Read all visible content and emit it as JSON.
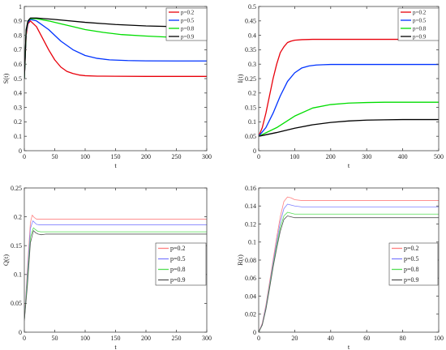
{
  "chart_data": [
    {
      "type": "line",
      "xlabel": "t",
      "ylabel": "S(t)",
      "xlim": [
        0,
        300
      ],
      "ylim": [
        0,
        1
      ],
      "xticks": [
        0,
        50,
        100,
        150,
        200,
        250,
        300
      ],
      "yticks": [
        0,
        0.1,
        0.2,
        0.3,
        0.4,
        0.5,
        0.6,
        0.7,
        0.8,
        0.9,
        1
      ],
      "ytick_labels": [
        "0",
        "0.1",
        "0.2",
        "0.3",
        "0.4",
        "0.5",
        "0.6",
        "0.7",
        "0.8",
        "0.9",
        "1"
      ],
      "grid": false,
      "legend_position": "top-right",
      "series": [
        {
          "name": "p=0.2",
          "color": "#e8000b",
          "x": [
            0,
            3,
            6,
            10,
            20,
            30,
            40,
            50,
            60,
            70,
            80,
            90,
            100,
            120,
            150,
            200,
            250,
            300
          ],
          "y": [
            0.5,
            0.8,
            0.88,
            0.9,
            0.86,
            0.78,
            0.7,
            0.63,
            0.58,
            0.55,
            0.535,
            0.525,
            0.52,
            0.517,
            0.516,
            0.515,
            0.515,
            0.515
          ]
        },
        {
          "name": "p=0.5",
          "color": "#0033ff",
          "x": [
            0,
            3,
            6,
            10,
            20,
            40,
            60,
            80,
            100,
            120,
            140,
            170,
            200,
            250,
            300
          ],
          "y": [
            0.5,
            0.82,
            0.89,
            0.91,
            0.9,
            0.84,
            0.76,
            0.7,
            0.66,
            0.64,
            0.63,
            0.625,
            0.623,
            0.622,
            0.622
          ]
        },
        {
          "name": "p=0.8",
          "color": "#00dd00",
          "x": [
            0,
            3,
            6,
            10,
            20,
            40,
            60,
            80,
            100,
            130,
            160,
            200,
            250,
            300
          ],
          "y": [
            0.5,
            0.83,
            0.9,
            0.915,
            0.915,
            0.9,
            0.88,
            0.86,
            0.84,
            0.82,
            0.805,
            0.795,
            0.785,
            0.78
          ]
        },
        {
          "name": "p=0.9",
          "color": "#000000",
          "x": [
            0,
            3,
            6,
            10,
            20,
            50,
            100,
            150,
            200,
            250,
            300
          ],
          "y": [
            0.5,
            0.84,
            0.9,
            0.92,
            0.92,
            0.91,
            0.89,
            0.875,
            0.865,
            0.86,
            0.855
          ]
        }
      ]
    },
    {
      "type": "line",
      "xlabel": "t",
      "ylabel": "I(t)",
      "xlim": [
        0,
        500
      ],
      "ylim": [
        0,
        0.5
      ],
      "xticks": [
        0,
        100,
        200,
        300,
        400,
        500
      ],
      "yticks": [
        0,
        0.05,
        0.1,
        0.15,
        0.2,
        0.25,
        0.3,
        0.35,
        0.4,
        0.45,
        0.5
      ],
      "ytick_labels": [
        "0",
        "0.05",
        "0.1",
        "0.15",
        "0.2",
        "0.25",
        "0.3",
        "0.35",
        "0.4",
        "0.45",
        "0.5"
      ],
      "grid": false,
      "legend_position": "top-right",
      "series": [
        {
          "name": "p=0.2",
          "color": "#e8000b",
          "x": [
            0,
            10,
            20,
            30,
            40,
            50,
            60,
            70,
            80,
            90,
            100,
            120,
            150,
            200,
            300,
            500
          ],
          "y": [
            0.05,
            0.08,
            0.13,
            0.19,
            0.25,
            0.3,
            0.34,
            0.36,
            0.375,
            0.38,
            0.383,
            0.385,
            0.386,
            0.386,
            0.386,
            0.386
          ]
        },
        {
          "name": "p=0.5",
          "color": "#0033ff",
          "x": [
            0,
            20,
            40,
            60,
            80,
            100,
            120,
            140,
            160,
            180,
            200,
            250,
            300,
            500
          ],
          "y": [
            0.05,
            0.08,
            0.13,
            0.19,
            0.24,
            0.27,
            0.287,
            0.294,
            0.297,
            0.298,
            0.299,
            0.299,
            0.299,
            0.299
          ]
        },
        {
          "name": "p=0.8",
          "color": "#00dd00",
          "x": [
            0,
            50,
            100,
            150,
            200,
            250,
            300,
            350,
            400,
            500
          ],
          "y": [
            0.05,
            0.08,
            0.12,
            0.148,
            0.16,
            0.165,
            0.167,
            0.168,
            0.168,
            0.168
          ]
        },
        {
          "name": "p=0.9",
          "color": "#000000",
          "x": [
            0,
            50,
            100,
            150,
            200,
            250,
            300,
            350,
            400,
            450,
            500
          ],
          "y": [
            0.05,
            0.063,
            0.078,
            0.09,
            0.098,
            0.103,
            0.106,
            0.107,
            0.108,
            0.108,
            0.108
          ]
        }
      ]
    },
    {
      "type": "line",
      "xlabel": "t",
      "ylabel": "Q(t)",
      "xlim": [
        0,
        300
      ],
      "ylim": [
        0,
        0.25
      ],
      "xticks": [
        0,
        50,
        100,
        150,
        200,
        250,
        300
      ],
      "yticks": [
        0,
        0.05,
        0.1,
        0.15,
        0.2,
        0.25
      ],
      "ytick_labels": [
        "0",
        "0.05",
        "0.1",
        "0.15",
        "0.2",
        "0.25"
      ],
      "grid": false,
      "legend_position": "center-right",
      "series": [
        {
          "name": "p=0.2",
          "color": "#ff8080",
          "x": [
            0,
            5,
            10,
            13,
            16,
            20,
            25,
            30,
            50,
            300
          ],
          "y": [
            0.02,
            0.11,
            0.19,
            0.203,
            0.199,
            0.196,
            0.196,
            0.196,
            0.196,
            0.196
          ]
        },
        {
          "name": "p=0.5",
          "color": "#8080ff",
          "x": [
            0,
            5,
            10,
            14,
            17,
            20,
            25,
            30,
            50,
            300
          ],
          "y": [
            0.02,
            0.1,
            0.18,
            0.193,
            0.19,
            0.187,
            0.186,
            0.186,
            0.186,
            0.186
          ]
        },
        {
          "name": "p=0.8",
          "color": "#55dd55",
          "x": [
            0,
            5,
            10,
            15,
            18,
            22,
            27,
            32,
            50,
            300
          ],
          "y": [
            0.02,
            0.09,
            0.165,
            0.181,
            0.178,
            0.175,
            0.174,
            0.174,
            0.174,
            0.174
          ]
        },
        {
          "name": "p=0.9",
          "color": "#555555",
          "x": [
            0,
            5,
            10,
            15,
            19,
            23,
            28,
            35,
            50,
            300
          ],
          "y": [
            0.02,
            0.08,
            0.155,
            0.176,
            0.172,
            0.17,
            0.169,
            0.17,
            0.17,
            0.17
          ]
        }
      ]
    },
    {
      "type": "line",
      "xlabel": "t",
      "ylabel": "R(t)",
      "xlim": [
        0,
        100
      ],
      "ylim": [
        0,
        0.16
      ],
      "xticks": [
        0,
        20,
        40,
        60,
        80,
        100
      ],
      "yticks": [
        0,
        0.02,
        0.04,
        0.06,
        0.08,
        0.1,
        0.12,
        0.14,
        0.16
      ],
      "ytick_labels": [
        "0",
        "0.02",
        "0.04",
        "0.06",
        "0.08",
        "0.1",
        "0.12",
        "0.14",
        "0.16"
      ],
      "grid": false,
      "legend_position": "center-right",
      "series": [
        {
          "name": "p=0.2",
          "color": "#ff8080",
          "x": [
            0,
            2,
            4,
            6,
            8,
            10,
            12,
            14,
            16,
            18,
            20,
            24,
            30,
            100
          ],
          "y": [
            0,
            0.01,
            0.03,
            0.055,
            0.08,
            0.105,
            0.128,
            0.145,
            0.15,
            0.149,
            0.147,
            0.146,
            0.146,
            0.146
          ]
        },
        {
          "name": "p=0.5",
          "color": "#8080ff",
          "x": [
            0,
            2,
            4,
            6,
            8,
            10,
            12,
            14,
            16,
            18,
            20,
            24,
            30,
            100
          ],
          "y": [
            0,
            0.009,
            0.028,
            0.052,
            0.077,
            0.1,
            0.122,
            0.137,
            0.142,
            0.141,
            0.14,
            0.139,
            0.139,
            0.139
          ]
        },
        {
          "name": "p=0.8",
          "color": "#55dd55",
          "x": [
            0,
            2,
            4,
            6,
            8,
            10,
            12,
            14,
            16,
            18,
            20,
            24,
            30,
            100
          ],
          "y": [
            0,
            0.008,
            0.026,
            0.05,
            0.074,
            0.096,
            0.116,
            0.129,
            0.133,
            0.132,
            0.131,
            0.131,
            0.131,
            0.131
          ]
        },
        {
          "name": "p=0.9",
          "color": "#555555",
          "x": [
            0,
            2,
            4,
            6,
            8,
            10,
            12,
            14,
            16,
            18,
            20,
            24,
            30,
            100
          ],
          "y": [
            0,
            0.008,
            0.025,
            0.048,
            0.072,
            0.093,
            0.112,
            0.125,
            0.129,
            0.128,
            0.127,
            0.127,
            0.127,
            0.127
          ]
        }
      ]
    }
  ]
}
